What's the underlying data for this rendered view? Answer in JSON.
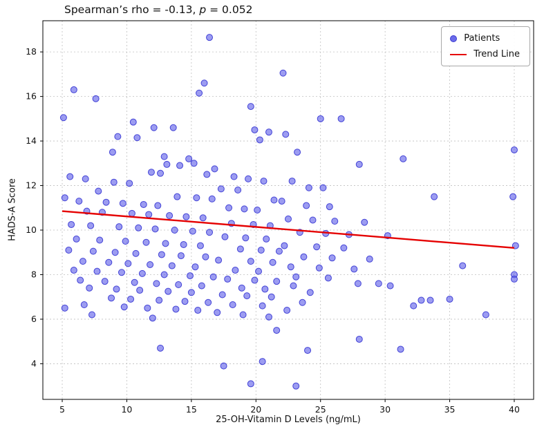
{
  "figure": {
    "title": {
      "prefix": "Spearman’s rho = -0.13, ",
      "italic": "p",
      "suffix": " = 0.052"
    }
  },
  "chart_data": {
    "type": "scatter",
    "title": "Spearman’s rho = -0.13, p = 0.052",
    "xlabel": "25-OH-Vitamin D Levels (ng/mL)",
    "ylabel": "HADS-A Score",
    "xlim": [
      3.5,
      41.5
    ],
    "ylim": [
      2.4,
      19.4
    ],
    "xticks": [
      5,
      10,
      15,
      20,
      25,
      30,
      35,
      40
    ],
    "yticks": [
      4,
      6,
      8,
      10,
      12,
      14,
      16,
      18
    ],
    "grid": true,
    "grid_style": "dashed",
    "legend_position": "upper right",
    "stats": {
      "spearman_rho": -0.13,
      "p_value": 0.052
    },
    "colors": {
      "point_fill": "#5a5ae8",
      "point_edge": "#2a2ad0",
      "trend": "#e50000",
      "grid": "#bfbfbf"
    },
    "legend": [
      {
        "label": "Patients",
        "marker": "dot"
      },
      {
        "label": "Trend Line",
        "marker": "line"
      }
    ],
    "series": [
      {
        "name": "Patients",
        "type": "scatter",
        "points": [
          [
            16.4,
            18.65
          ],
          [
            22.1,
            17.05
          ],
          [
            16.0,
            16.6
          ],
          [
            15.6,
            16.15
          ],
          [
            5.9,
            16.3
          ],
          [
            7.6,
            15.9
          ],
          [
            19.6,
            15.55
          ],
          [
            25.0,
            15.0
          ],
          [
            26.6,
            15.0
          ],
          [
            5.1,
            15.05
          ],
          [
            10.5,
            14.85
          ],
          [
            12.1,
            14.6
          ],
          [
            13.6,
            14.6
          ],
          [
            19.9,
            14.5
          ],
          [
            21.0,
            14.4
          ],
          [
            22.3,
            14.3
          ],
          [
            20.3,
            14.05
          ],
          [
            9.3,
            14.2
          ],
          [
            10.8,
            14.15
          ],
          [
            40.0,
            13.6
          ],
          [
            31.4,
            13.2
          ],
          [
            23.2,
            13.5
          ],
          [
            8.9,
            13.5
          ],
          [
            12.9,
            13.3
          ],
          [
            14.8,
            13.2
          ],
          [
            15.2,
            13.0
          ],
          [
            13.1,
            12.95
          ],
          [
            14.1,
            12.9
          ],
          [
            16.8,
            12.75
          ],
          [
            28.0,
            12.95
          ],
          [
            11.9,
            12.6
          ],
          [
            12.6,
            12.55
          ],
          [
            16.2,
            12.5
          ],
          [
            18.3,
            12.4
          ],
          [
            19.4,
            12.3
          ],
          [
            5.6,
            12.4
          ],
          [
            6.8,
            12.3
          ],
          [
            9.0,
            12.15
          ],
          [
            10.2,
            12.1
          ],
          [
            20.6,
            12.2
          ],
          [
            22.8,
            12.2
          ],
          [
            24.1,
            11.9
          ],
          [
            25.2,
            11.9
          ],
          [
            17.3,
            11.85
          ],
          [
            18.6,
            11.8
          ],
          [
            7.8,
            11.75
          ],
          [
            39.9,
            11.5
          ],
          [
            33.8,
            11.5
          ],
          [
            13.9,
            11.5
          ],
          [
            15.4,
            11.45
          ],
          [
            16.6,
            11.4
          ],
          [
            21.4,
            11.35
          ],
          [
            22.0,
            11.3
          ],
          [
            5.2,
            11.45
          ],
          [
            6.3,
            11.3
          ],
          [
            8.4,
            11.25
          ],
          [
            9.7,
            11.2
          ],
          [
            11.3,
            11.15
          ],
          [
            12.4,
            11.1
          ],
          [
            23.9,
            11.1
          ],
          [
            25.7,
            11.05
          ],
          [
            17.9,
            11.0
          ],
          [
            19.1,
            10.95
          ],
          [
            20.1,
            10.9
          ],
          [
            6.9,
            10.85
          ],
          [
            8.1,
            10.8
          ],
          [
            10.4,
            10.75
          ],
          [
            11.7,
            10.7
          ],
          [
            13.3,
            10.65
          ],
          [
            14.6,
            10.6
          ],
          [
            15.9,
            10.55
          ],
          [
            22.5,
            10.5
          ],
          [
            24.4,
            10.45
          ],
          [
            26.1,
            10.4
          ],
          [
            28.4,
            10.35
          ],
          [
            18.1,
            10.3
          ],
          [
            19.8,
            10.25
          ],
          [
            21.1,
            10.2
          ],
          [
            5.7,
            10.25
          ],
          [
            7.2,
            10.2
          ],
          [
            9.4,
            10.15
          ],
          [
            10.9,
            10.1
          ],
          [
            12.2,
            10.05
          ],
          [
            13.7,
            10.0
          ],
          [
            15.1,
            9.95
          ],
          [
            16.4,
            9.9
          ],
          [
            23.4,
            9.9
          ],
          [
            25.4,
            9.85
          ],
          [
            27.2,
            9.8
          ],
          [
            30.2,
            9.75
          ],
          [
            17.6,
            9.7
          ],
          [
            19.2,
            9.65
          ],
          [
            20.8,
            9.6
          ],
          [
            6.1,
            9.6
          ],
          [
            7.9,
            9.55
          ],
          [
            9.9,
            9.5
          ],
          [
            11.5,
            9.45
          ],
          [
            13.0,
            9.4
          ],
          [
            14.4,
            9.35
          ],
          [
            15.7,
            9.3
          ],
          [
            22.2,
            9.3
          ],
          [
            24.7,
            9.25
          ],
          [
            26.8,
            9.2
          ],
          [
            40.1,
            9.3
          ],
          [
            18.8,
            9.15
          ],
          [
            20.4,
            9.1
          ],
          [
            21.8,
            9.05
          ],
          [
            5.5,
            9.1
          ],
          [
            7.4,
            9.05
          ],
          [
            9.1,
            9.0
          ],
          [
            10.7,
            8.95
          ],
          [
            12.7,
            8.9
          ],
          [
            14.2,
            8.85
          ],
          [
            16.1,
            8.8
          ],
          [
            23.7,
            8.8
          ],
          [
            25.9,
            8.75
          ],
          [
            28.8,
            8.7
          ],
          [
            17.1,
            8.65
          ],
          [
            19.6,
            8.6
          ],
          [
            21.3,
            8.55
          ],
          [
            6.6,
            8.6
          ],
          [
            8.6,
            8.55
          ],
          [
            10.1,
            8.5
          ],
          [
            11.8,
            8.45
          ],
          [
            13.5,
            8.4
          ],
          [
            15.3,
            8.35
          ],
          [
            22.7,
            8.35
          ],
          [
            24.9,
            8.3
          ],
          [
            27.6,
            8.25
          ],
          [
            18.4,
            8.2
          ],
          [
            20.2,
            8.15
          ],
          [
            5.9,
            8.2
          ],
          [
            7.7,
            8.15
          ],
          [
            9.6,
            8.1
          ],
          [
            11.2,
            8.05
          ],
          [
            12.9,
            8.0
          ],
          [
            14.9,
            7.95
          ],
          [
            16.7,
            7.9
          ],
          [
            23.1,
            7.9
          ],
          [
            25.6,
            7.85
          ],
          [
            36.0,
            8.4
          ],
          [
            17.8,
            7.8
          ],
          [
            19.9,
            7.75
          ],
          [
            21.6,
            7.7
          ],
          [
            6.4,
            7.75
          ],
          [
            8.3,
            7.7
          ],
          [
            10.6,
            7.65
          ],
          [
            12.3,
            7.6
          ],
          [
            14.0,
            7.55
          ],
          [
            15.8,
            7.5
          ],
          [
            22.9,
            7.5
          ],
          [
            30.4,
            7.5
          ],
          [
            27.9,
            7.6
          ],
          [
            29.5,
            7.6
          ],
          [
            18.9,
            7.4
          ],
          [
            20.7,
            7.35
          ],
          [
            7.1,
            7.4
          ],
          [
            9.2,
            7.35
          ],
          [
            11.0,
            7.3
          ],
          [
            13.2,
            7.25
          ],
          [
            15.0,
            7.2
          ],
          [
            24.2,
            7.2
          ],
          [
            17.4,
            7.1
          ],
          [
            19.3,
            7.05
          ],
          [
            21.2,
            7.0
          ],
          [
            8.8,
            6.95
          ],
          [
            10.3,
            6.9
          ],
          [
            12.5,
            6.85
          ],
          [
            14.5,
            6.8
          ],
          [
            16.3,
            6.75
          ],
          [
            23.6,
            6.75
          ],
          [
            32.8,
            6.85
          ],
          [
            33.5,
            6.85
          ],
          [
            35.0,
            6.9
          ],
          [
            18.2,
            6.65
          ],
          [
            20.5,
            6.6
          ],
          [
            6.7,
            6.65
          ],
          [
            9.8,
            6.55
          ],
          [
            11.6,
            6.5
          ],
          [
            13.8,
            6.45
          ],
          [
            15.5,
            6.4
          ],
          [
            22.4,
            6.4
          ],
          [
            5.2,
            6.5
          ],
          [
            32.2,
            6.6
          ],
          [
            17.0,
            6.3
          ],
          [
            19.0,
            6.2
          ],
          [
            7.3,
            6.2
          ],
          [
            37.8,
            6.2
          ],
          [
            12.0,
            6.05
          ],
          [
            21.0,
            6.1
          ],
          [
            21.6,
            5.5
          ],
          [
            28.0,
            5.1
          ],
          [
            12.6,
            4.7
          ],
          [
            24.0,
            4.6
          ],
          [
            31.2,
            4.65
          ],
          [
            20.5,
            4.1
          ],
          [
            17.5,
            3.9
          ],
          [
            19.6,
            3.1
          ],
          [
            23.1,
            3.0
          ],
          [
            40.0,
            8.0
          ],
          [
            40.0,
            7.8
          ]
        ]
      },
      {
        "name": "Trend Line",
        "type": "line",
        "points": [
          [
            5,
            10.85
          ],
          [
            40,
            9.2
          ]
        ]
      }
    ]
  }
}
